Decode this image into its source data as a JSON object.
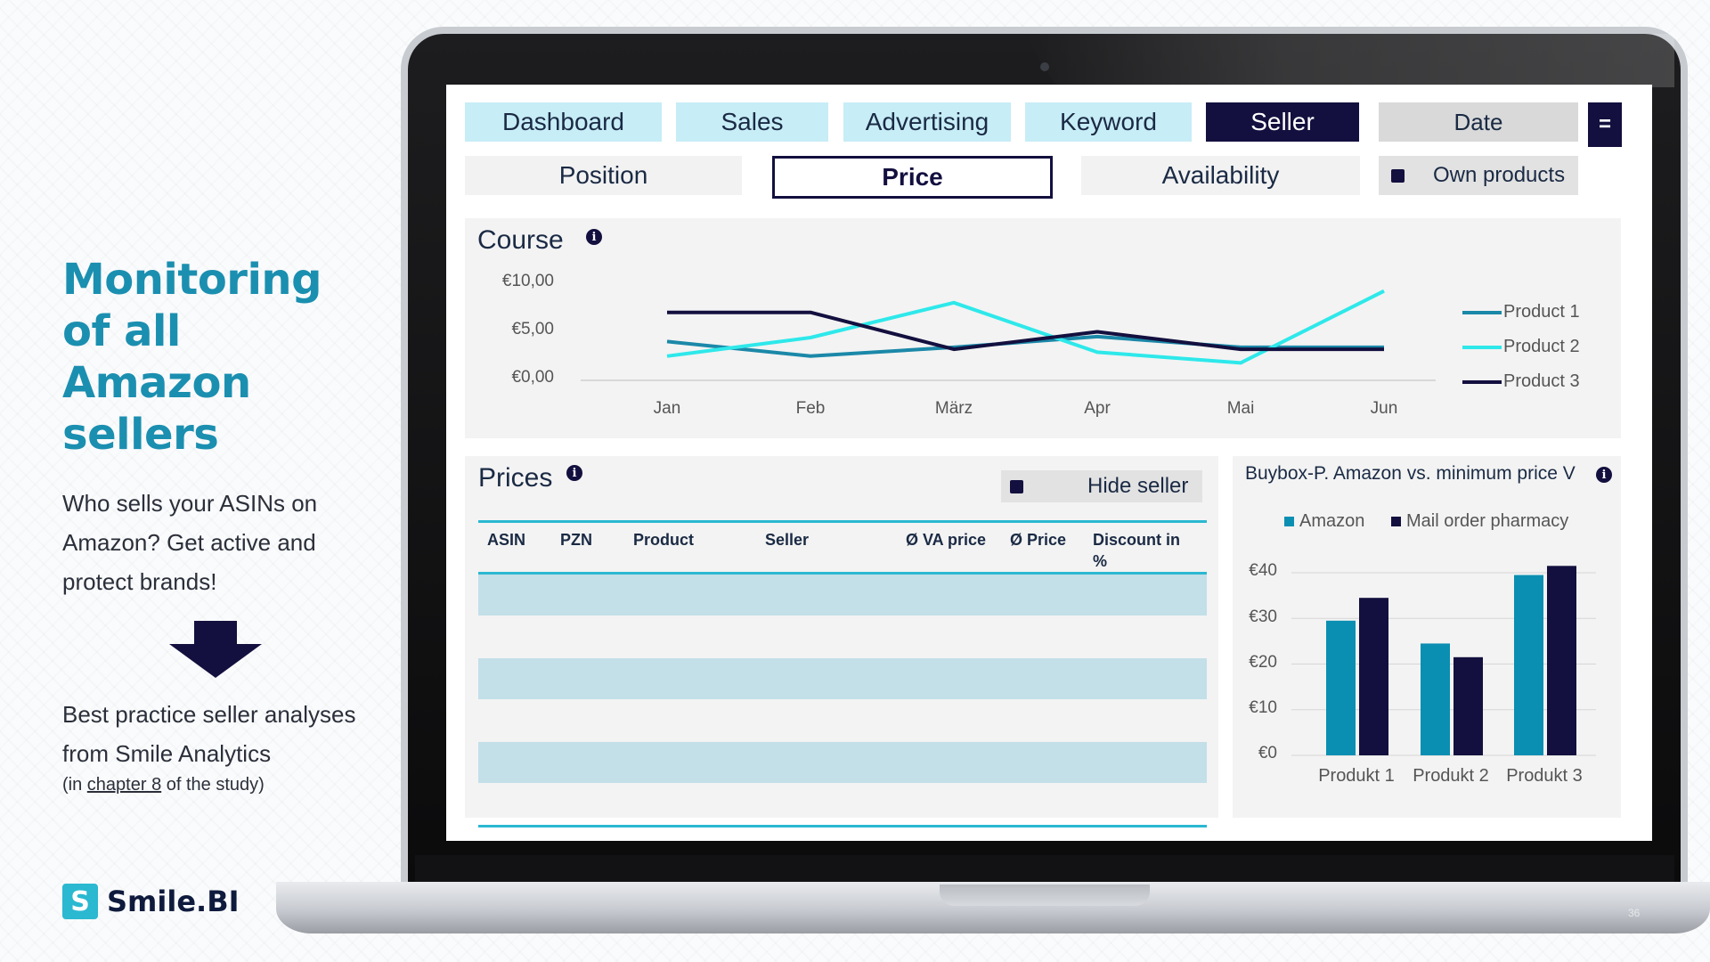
{
  "slide": {
    "headline": [
      "Monitoring",
      "of all Amazon",
      "sellers"
    ],
    "intro": [
      "Who sells your ASINs on",
      "Amazon? Get active and",
      "protect brands!"
    ],
    "practice": [
      "Best practice seller analyses",
      "from Smile Analytics"
    ],
    "note": {
      "prefix": "(in ",
      "link": "chapter 8",
      "suffix": " of the study)"
    },
    "logo_mark": "S",
    "logo_text": "Smile.BI",
    "page_number": "36"
  },
  "nav": {
    "tabs": [
      {
        "label": "Dashboard",
        "active": false
      },
      {
        "label": "Sales",
        "active": false
      },
      {
        "label": "Advertising",
        "active": false
      },
      {
        "label": "Keyword",
        "active": false
      },
      {
        "label": "Seller",
        "active": true
      }
    ],
    "date_label": "Date",
    "menu_symbol": "="
  },
  "subnav": {
    "tabs": [
      {
        "label": "Position",
        "active": false
      },
      {
        "label": "Price",
        "active": true
      },
      {
        "label": "Availability",
        "active": false
      }
    ],
    "own_products_label": "Own products"
  },
  "course": {
    "title": "Course",
    "info": "i"
  },
  "prices": {
    "title": "Prices",
    "info": "i",
    "hide_seller_label": "Hide seller",
    "columns": [
      "ASIN",
      "PZN",
      "Product",
      "Seller",
      "Ø VA price",
      "Ø Price",
      "Discount in %"
    ]
  },
  "buybox": {
    "title": "Buybox-P. Amazon vs. minimum price V",
    "info": "i"
  },
  "colors": {
    "navy": "#13103f",
    "product1": "#1b88a8",
    "product2": "#2ee8ea",
    "product3": "#13103f",
    "amazon": "#0a8fb2",
    "mail_order": "#13103f",
    "accent": "#1b8fb0"
  },
  "chart_data": [
    {
      "type": "line",
      "title": "Course",
      "x": [
        "Jan",
        "Feb",
        "März",
        "Apr",
        "Mai",
        "Jun"
      ],
      "yticks": [
        "€10,00",
        "€5,00",
        "€0,00"
      ],
      "ylim": [
        0,
        10
      ],
      "grid": false,
      "legend": "right",
      "series": [
        {
          "name": "Product 1",
          "values": [
            4.0,
            2.5,
            3.4,
            4.5,
            3.4,
            3.4
          ]
        },
        {
          "name": "Product 2",
          "values": [
            2.5,
            4.4,
            8.0,
            2.9,
            1.8,
            9.2
          ]
        },
        {
          "name": "Product 3",
          "values": [
            7.0,
            7.0,
            3.2,
            5.0,
            3.2,
            3.2
          ]
        }
      ]
    },
    {
      "type": "bar",
      "title": "Buybox-P. Amazon vs. minimum price V",
      "categories": [
        "Produkt 1",
        "Produkt 2",
        "Produkt 3"
      ],
      "yticks": [
        "€40",
        "€30",
        "€20",
        "€10",
        "€0"
      ],
      "ylim": [
        0,
        40
      ],
      "grid": true,
      "legend": "top",
      "series": [
        {
          "name": "Amazon",
          "values": [
            29.5,
            24.5,
            39.5
          ]
        },
        {
          "name": "Mail order pharmacy",
          "values": [
            34.5,
            21.5,
            41.5
          ]
        }
      ]
    }
  ]
}
